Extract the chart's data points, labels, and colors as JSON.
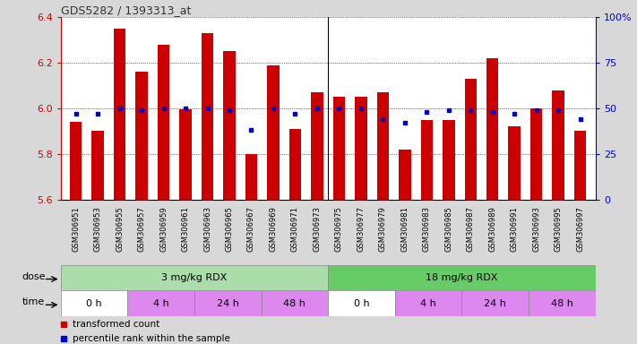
{
  "title": "GDS5282 / 1393313_at",
  "samples": [
    "GSM306951",
    "GSM306953",
    "GSM306955",
    "GSM306957",
    "GSM306959",
    "GSM306961",
    "GSM306963",
    "GSM306965",
    "GSM306967",
    "GSM306969",
    "GSM306971",
    "GSM306973",
    "GSM306975",
    "GSM306977",
    "GSM306979",
    "GSM306981",
    "GSM306983",
    "GSM306985",
    "GSM306987",
    "GSM306989",
    "GSM306991",
    "GSM306993",
    "GSM306995",
    "GSM306997"
  ],
  "bar_values": [
    5.94,
    5.9,
    6.35,
    6.16,
    6.28,
    5.995,
    6.33,
    6.25,
    5.8,
    6.19,
    5.91,
    6.07,
    6.05,
    6.05,
    6.07,
    5.82,
    5.95,
    5.95,
    6.13,
    6.22,
    5.92,
    6.0,
    6.08,
    5.9
  ],
  "percentile_values": [
    47,
    47,
    50,
    49,
    50,
    50,
    50,
    49,
    38,
    50,
    47,
    50,
    50,
    50,
    44,
    42,
    48,
    49,
    49,
    48,
    47,
    49,
    49,
    44
  ],
  "ylim_left": [
    5.6,
    6.4
  ],
  "ylim_right": [
    0,
    100
  ],
  "bar_color": "#cc0000",
  "dot_color": "#0000cc",
  "background_color": "#d8d8d8",
  "plot_bg_color": "#ffffff",
  "yticks_left": [
    5.6,
    5.8,
    6.0,
    6.2,
    6.4
  ],
  "yticks_right": [
    0,
    25,
    50,
    75,
    100
  ],
  "dose_labels": [
    "3 mg/kg RDX",
    "18 mg/kg RDX"
  ],
  "dose_colors": [
    "#aaddaa",
    "#66cc66"
  ],
  "dose_starts": [
    0,
    12
  ],
  "dose_ends": [
    12,
    24
  ],
  "time_labels": [
    "0 h",
    "4 h",
    "24 h",
    "48 h",
    "0 h",
    "4 h",
    "24 h",
    "48 h"
  ],
  "time_colors": [
    "#ffffff",
    "#dd88ee",
    "#dd88ee",
    "#dd88ee",
    "#ffffff",
    "#dd88ee",
    "#dd88ee",
    "#dd88ee"
  ],
  "time_starts": [
    0,
    3,
    6,
    9,
    12,
    15,
    18,
    21
  ],
  "time_ends": [
    3,
    6,
    9,
    12,
    15,
    18,
    21,
    24
  ]
}
